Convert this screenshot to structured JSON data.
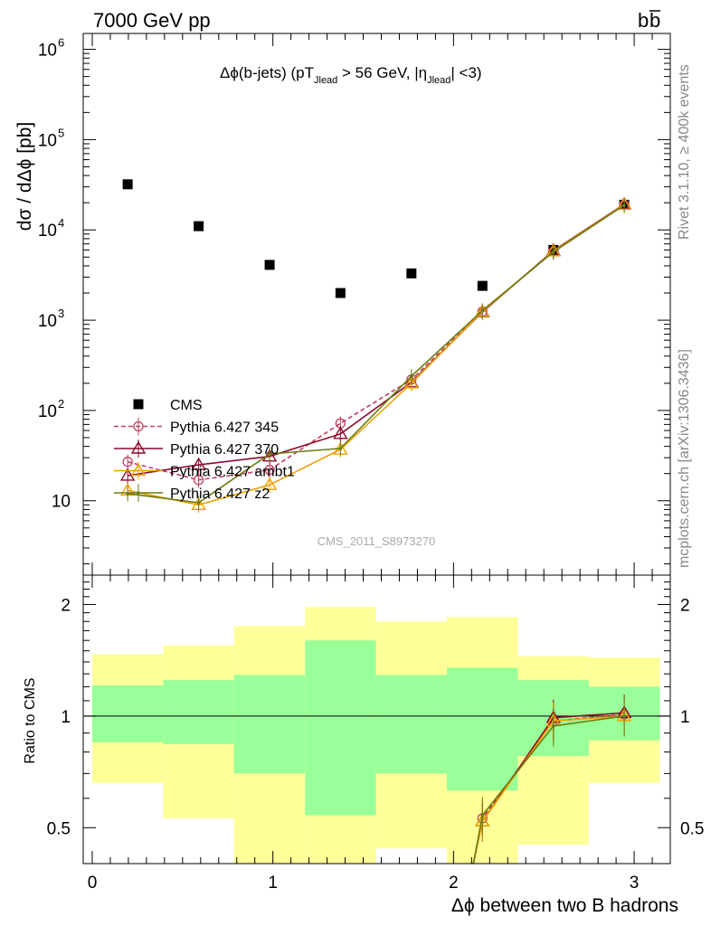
{
  "header": {
    "left": "7000 GeV pp",
    "right_main": "b",
    "right_bar": "b"
  },
  "side_labels": {
    "top": "Rivet 3.1.10, ≥ 400k events",
    "bottom": "mcplots.cern.ch [arXiv:1306.3436]"
  },
  "watermark": "CMS_2011_S8973270",
  "colors": {
    "cms": "#000000",
    "p345": "#c04060",
    "p370": "#8b0a2a",
    "ambt1": "#f0a000",
    "z2": "#6b7d10",
    "band_inner": "#99ff99",
    "band_outer": "#ffff99"
  },
  "chart_data": [
    {
      "type": "scatter",
      "title_parts": {
        "pre": "Δϕ(b-jets) (pT",
        "sub1": "Jlead",
        "mid": " >  56 GeV, |η",
        "sub2": "Jlead",
        "post": "| <3)"
      },
      "ylabel": "dσ / dΔϕ [pb]",
      "yscale": "log",
      "ylim": [
        1.5,
        1500000
      ],
      "xlim": [
        -0.05,
        3.2
      ],
      "yticks": [
        10,
        100,
        1000,
        10000,
        100000,
        1000000
      ],
      "ytick_labels": [
        {
          "base": "10",
          "exp": ""
        },
        {
          "base": "10",
          "exp": "2"
        },
        {
          "base": "10",
          "exp": "3"
        },
        {
          "base": "10",
          "exp": "4"
        },
        {
          "base": "10",
          "exp": "5"
        },
        {
          "base": "10",
          "exp": "6"
        }
      ],
      "series": [
        {
          "name": "CMS",
          "style": "square",
          "x": [
            0.196,
            0.589,
            0.982,
            1.374,
            1.767,
            2.16,
            2.553,
            2.945
          ],
          "y": [
            32000,
            11000,
            4100,
            2000,
            3300,
            2400,
            6000,
            19000
          ]
        },
        {
          "name": "Pythia 6.427 345",
          "style": "dashed-circle",
          "x": [
            0.196,
            0.589,
            0.982,
            1.374,
            1.767,
            2.16,
            2.553,
            2.945
          ],
          "y": [
            27,
            17,
            22,
            72,
            220,
            1250,
            5800,
            19000
          ]
        },
        {
          "name": "Pythia 6.427 370",
          "style": "triangle",
          "x": [
            0.196,
            0.589,
            0.982,
            1.374,
            1.767,
            2.16,
            2.553,
            2.945
          ],
          "y": [
            19,
            25,
            31,
            55,
            205,
            1230,
            5900,
            19200
          ]
        },
        {
          "name": "Pythia 6.427 ambt1",
          "style": "triangle-yellow",
          "x": [
            0.196,
            0.589,
            0.982,
            1.374,
            1.767,
            2.16,
            2.553,
            2.945
          ],
          "y": [
            13,
            9,
            15,
            37,
            200,
            1250,
            5800,
            19000
          ]
        },
        {
          "name": "Pythia 6.427 z2",
          "style": "dot",
          "x": [
            0.196,
            0.589,
            0.982,
            1.374,
            1.767,
            2.16,
            2.553,
            2.945
          ],
          "y": [
            12,
            9.5,
            33,
            38,
            240,
            1280,
            5700,
            18800
          ]
        }
      ]
    },
    {
      "type": "line",
      "ylabel": "Ratio to CMS",
      "xlabel": "Δϕ between two B hadrons",
      "yscale": "log",
      "ylim": [
        0.4,
        2.4
      ],
      "xlim": [
        -0.05,
        3.2
      ],
      "xticks": [
        0,
        1,
        2,
        3
      ],
      "xtick_labels": [
        "0",
        "1",
        "2",
        "3"
      ],
      "yticks": [
        0.5,
        1,
        2
      ],
      "ytick_labels": [
        "0.5",
        "1",
        "2"
      ],
      "bins": [
        0,
        0.393,
        0.785,
        1.178,
        1.571,
        1.963,
        2.356,
        2.749,
        3.142
      ],
      "band_inner": [
        [
          0.85,
          1.21
        ],
        [
          0.84,
          1.25
        ],
        [
          0.7,
          1.29
        ],
        [
          0.54,
          1.6
        ],
        [
          0.7,
          1.29
        ],
        [
          0.63,
          1.35
        ],
        [
          0.78,
          1.25
        ],
        [
          0.86,
          1.2
        ]
      ],
      "band_outer": [
        [
          0.66,
          1.47
        ],
        [
          0.53,
          1.55
        ],
        [
          0.38,
          1.75
        ],
        [
          0.38,
          1.97
        ],
        [
          0.44,
          1.8
        ],
        [
          0.38,
          1.85
        ],
        [
          0.45,
          1.45
        ],
        [
          0.66,
          1.44
        ]
      ],
      "series": [
        {
          "name": "Pythia 6.427 345",
          "x": [
            2.16,
            2.553,
            2.945
          ],
          "y": [
            0.53,
            0.97,
            1.01
          ]
        },
        {
          "name": "Pythia 6.427 370",
          "x": [
            2.16,
            2.553,
            2.945
          ],
          "y": [
            0.52,
            0.99,
            1.02
          ]
        },
        {
          "name": "Pythia 6.427 ambt1",
          "x": [
            2.16,
            2.553,
            2.945
          ],
          "y": [
            0.52,
            0.97,
            1.0
          ]
        },
        {
          "name": "Pythia 6.427 z2",
          "x": [
            2.16,
            2.553,
            2.945
          ],
          "y": [
            0.54,
            0.94,
            1.0
          ]
        }
      ]
    }
  ]
}
